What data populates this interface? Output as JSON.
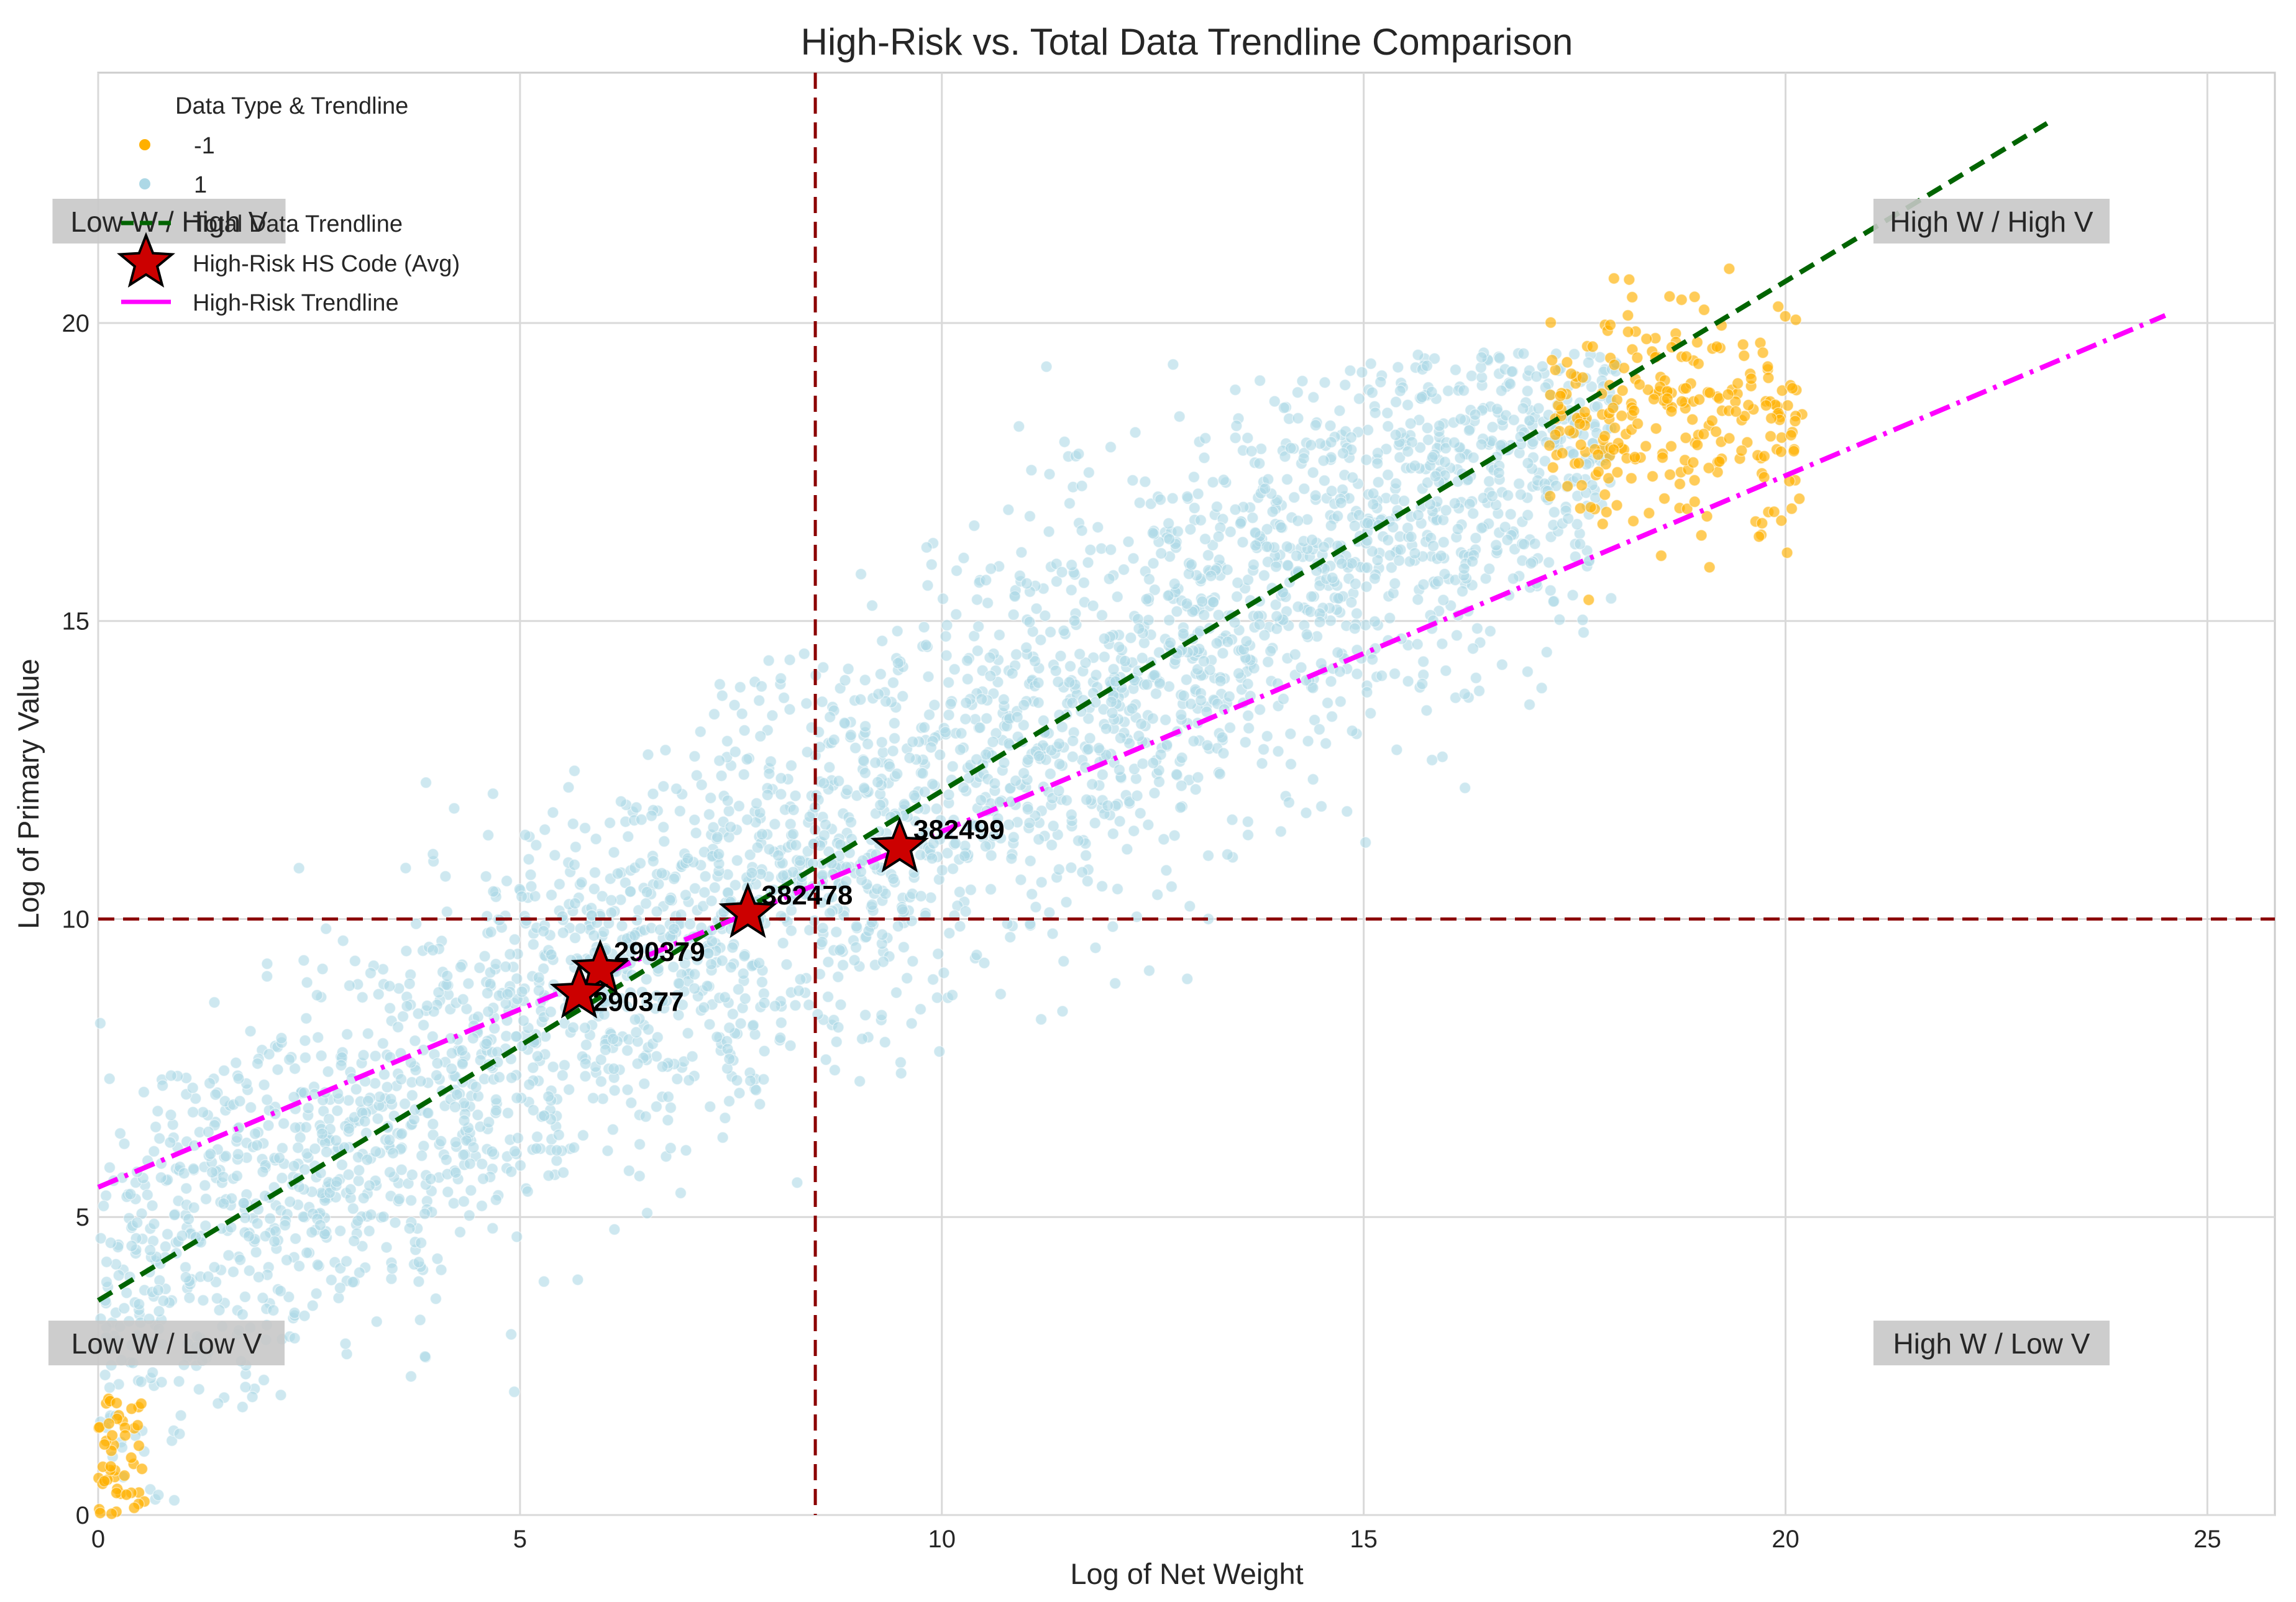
{
  "chart_data": {
    "type": "scatter",
    "title": "High-Risk vs. Total Data Trendline Comparison",
    "xlabel": "Log of Net Weight",
    "ylabel": "Log of Primary Value",
    "xlim": [
      0,
      25.8
    ],
    "ylim": [
      0,
      24.2
    ],
    "xticks": [
      0,
      5,
      10,
      15,
      20,
      25
    ],
    "yticks": [
      0,
      5,
      10,
      15,
      20
    ],
    "grid": true,
    "colors": {
      "positive": "#add8e6",
      "negative": "#ffb000",
      "total_trend": "#006400",
      "highrisk_trend": "#ff00ff",
      "star": "#cc0000",
      "threshold": "#8b0000"
    },
    "series": [
      {
        "name": "1",
        "description": "light blue points",
        "cloud": {
          "slope": 0.855,
          "intercept": 3.6,
          "x_range": [
            0,
            18
          ],
          "y_spread": 1.7,
          "count": 3500
        }
      },
      {
        "name": "-1",
        "description": "orange points",
        "clusters": [
          {
            "x_range": [
              17.2,
              20.2
            ],
            "y_center": 18.4,
            "y_spread": 1.5,
            "count": 260
          },
          {
            "x_range": [
              0,
              0.55
            ],
            "y_range": [
              0,
              2
            ],
            "count": 50
          }
        ]
      }
    ],
    "trendlines": [
      {
        "name": "Total Data Trendline",
        "slope": 0.855,
        "intercept": 3.6,
        "x_range": [
          0,
          23.1
        ],
        "style": "dashed"
      },
      {
        "name": "High-Risk Trendline",
        "slope": 0.597,
        "intercept": 5.5,
        "x_range": [
          0,
          24.5
        ],
        "style": "dashdot"
      }
    ],
    "thresholds": {
      "x": 8.5,
      "y": 10
    },
    "highrisk_points": [
      {
        "label": "382499",
        "x": 9.5,
        "y": 11.2
      },
      {
        "label": "382478",
        "x": 7.7,
        "y": 10.1
      },
      {
        "label": "290379",
        "x": 5.95,
        "y": 9.15
      },
      {
        "label": "290377",
        "x": 5.7,
        "y": 8.75
      }
    ],
    "quadrant_labels": {
      "top_left": "Low W / High V",
      "top_right": "High W / High V",
      "bottom_left": "Low W / Low V",
      "bottom_right": "High W / Low V"
    },
    "legend": {
      "title": "Data Type & Trendline",
      "placement": "top-left",
      "items": [
        {
          "label": "-1",
          "kind": "negative-point"
        },
        {
          "label": "1",
          "kind": "positive-point"
        },
        {
          "label": "Total Data Trendline",
          "kind": "total-line"
        },
        {
          "label": "High-Risk HS Code (Avg)",
          "kind": "star"
        },
        {
          "label": "High-Risk Trendline",
          "kind": "highrisk-line"
        }
      ]
    }
  }
}
